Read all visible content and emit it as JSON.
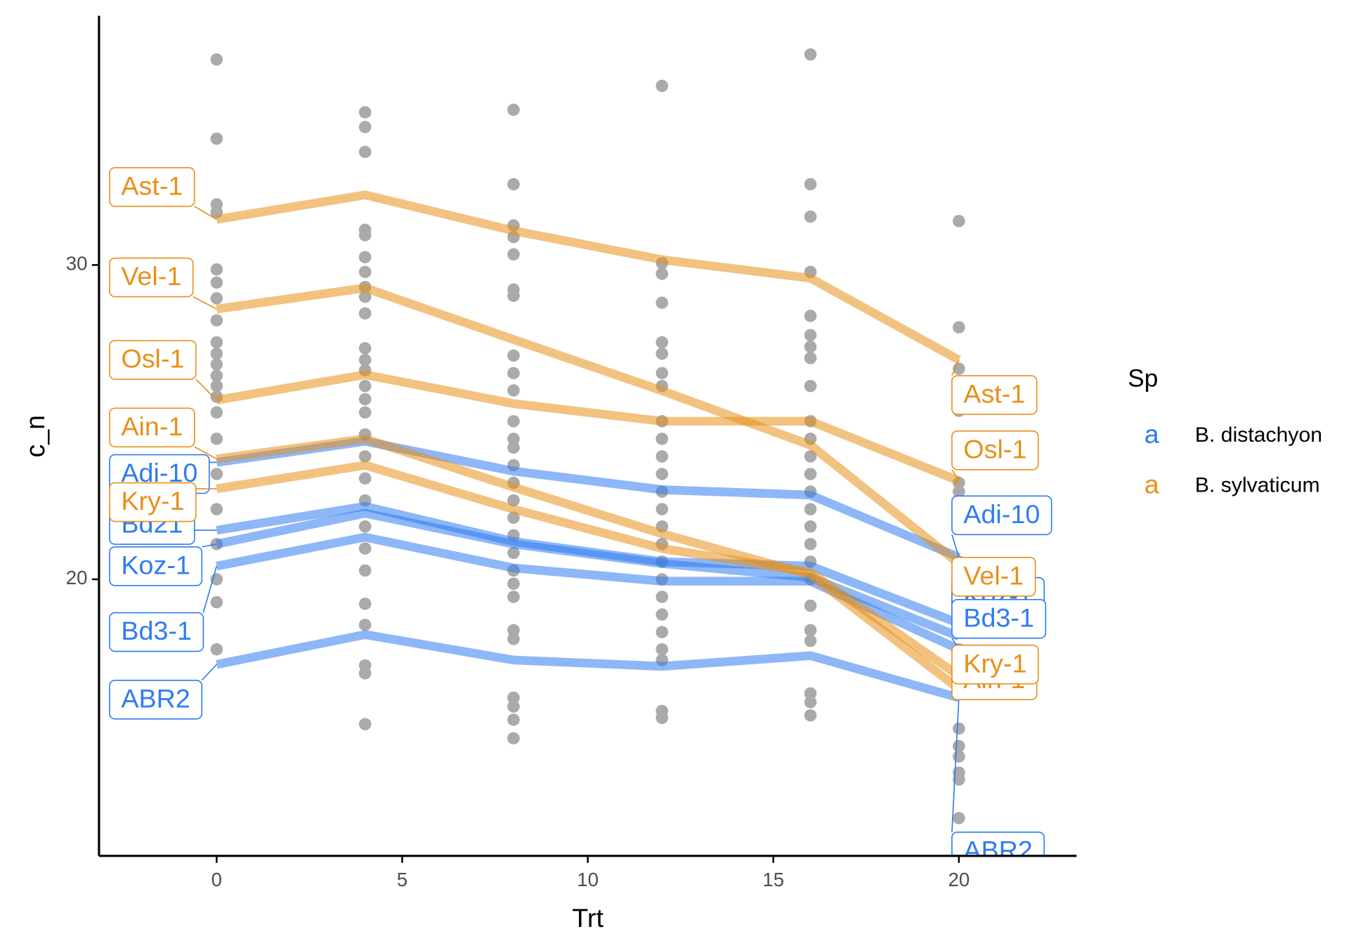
{
  "chart_data": {
    "type": "line",
    "x_label": "Trt",
    "y_label": "c_n",
    "xlim": [
      -3.17,
      23.17
    ],
    "ylim": [
      11.2,
      37.93
    ],
    "xticks": [
      0,
      5,
      10,
      15,
      20
    ],
    "yticks": [
      20,
      30
    ],
    "x": [
      0,
      4,
      8,
      12,
      16,
      20
    ],
    "legend_title": "Sp",
    "legend_symbol": "a",
    "points": {
      "color": "#aaaaaa",
      "x": [
        0,
        0,
        0,
        0,
        0,
        0,
        0,
        0,
        0,
        0,
        0,
        0,
        0,
        0,
        0,
        0,
        0,
        0,
        0,
        0,
        0,
        0,
        4,
        4,
        4,
        4,
        4,
        4,
        4,
        4,
        4,
        4,
        4,
        4,
        4,
        4,
        4,
        4,
        4,
        4,
        4,
        4,
        4,
        4,
        4,
        4,
        4,
        4,
        4,
        4,
        8,
        8,
        8,
        8,
        8,
        8,
        8,
        8,
        8,
        8,
        8,
        8,
        8,
        8,
        8,
        8,
        8,
        8,
        8,
        8,
        8,
        8,
        8,
        8,
        8,
        8,
        8,
        8,
        12,
        12,
        12,
        12,
        12,
        12,
        12,
        12,
        12,
        12,
        12,
        12,
        12,
        12,
        12,
        12,
        12,
        12,
        12,
        12,
        12,
        12,
        12,
        12,
        12,
        16,
        16,
        16,
        16,
        16,
        16,
        16,
        16,
        16,
        16,
        16,
        16,
        16,
        16,
        16,
        16,
        16,
        16,
        16,
        16,
        16,
        16,
        16,
        16,
        16,
        20,
        20,
        20,
        20,
        20,
        20,
        20,
        20,
        20,
        20,
        20,
        20,
        20,
        20,
        20,
        20,
        20,
        20,
        20,
        20,
        20
      ],
      "y": [
        36.54,
        34.02,
        31.93,
        31.68,
        29.86,
        29.44,
        28.94,
        28.24,
        27.54,
        27.18,
        26.84,
        26.48,
        26.15,
        25.81,
        25.31,
        24.47,
        23.35,
        22.23,
        21.12,
        20.0,
        19.27,
        17.77,
        34.86,
        34.39,
        33.6,
        31.12,
        30.95,
        30.25,
        29.78,
        29.3,
        28.99,
        28.46,
        27.35,
        26.98,
        26.65,
        26.15,
        25.73,
        25.31,
        24.61,
        23.91,
        23.21,
        22.51,
        21.68,
        20.98,
        20.28,
        19.22,
        18.55,
        17.26,
        17.01,
        15.39,
        34.94,
        32.57,
        31.26,
        30.89,
        30.34,
        29.22,
        29.02,
        27.12,
        26.56,
        26.01,
        25.03,
        24.47,
        24.19,
        23.63,
        23.07,
        22.51,
        21.96,
        21.4,
        20.84,
        20.28,
        19.86,
        19.44,
        18.38,
        18.1,
        16.23,
        15.95,
        15.53,
        14.94,
        35.7,
        30.06,
        29.72,
        28.8,
        27.54,
        27.18,
        26.56,
        26.15,
        25.03,
        24.47,
        23.91,
        23.35,
        22.79,
        22.23,
        21.68,
        21.12,
        20.56,
        20.0,
        19.44,
        18.88,
        18.32,
        17.77,
        17.43,
        15.81,
        15.59,
        36.7,
        32.57,
        31.54,
        29.78,
        28.38,
        27.77,
        27.4,
        27.04,
        26.15,
        25.03,
        24.47,
        23.91,
        23.35,
        22.79,
        22.23,
        21.68,
        21.12,
        20.56,
        20.0,
        19.16,
        18.38,
        18.04,
        16.37,
        16.09,
        15.67,
        31.4,
        28.02,
        26.7,
        25.73,
        25.36,
        24.53,
        23.07,
        22.79,
        21.68,
        20.56,
        18.88,
        18.32,
        17.77,
        17.21,
        16.65,
        15.25,
        14.69,
        14.36,
        13.85,
        13.63,
        12.4
      ]
    },
    "groups": [
      {
        "name": "B. distachyon",
        "color": "#2f7cf0",
        "series": [
          {
            "name": "Adi-10",
            "values": [
              23.72,
              24.39,
              23.44,
              22.85,
              22.68,
              20.7
            ]
          },
          {
            "name": "Bd21",
            "values": [
              21.56,
              22.32,
              21.2,
              20.56,
              20.42,
              18.6
            ]
          },
          {
            "name": "Koz-1",
            "values": [
              21.12,
              22.1,
              21.12,
              20.5,
              20.06,
              18.18
            ]
          },
          {
            "name": "Bd3-1",
            "values": [
              20.42,
              21.34,
              20.36,
              19.94,
              19.94,
              17.77
            ]
          },
          {
            "name": "ABR2",
            "values": [
              17.29,
              18.24,
              17.43,
              17.23,
              17.57,
              16.23
            ]
          }
        ]
      },
      {
        "name": "B. sylvaticum",
        "color": "#e8901a",
        "series": [
          {
            "name": "Ast-1",
            "values": [
              31.45,
              32.23,
              31.09,
              30.17,
              29.58,
              26.98
            ]
          },
          {
            "name": "Vel-1",
            "values": [
              28.6,
              29.27,
              27.63,
              26.0,
              24.27,
              20.5
            ]
          },
          {
            "name": "Osl-1",
            "values": [
              25.7,
              26.51,
              25.59,
              25.03,
              25.03,
              23.13
            ]
          },
          {
            "name": "Ain-1",
            "values": [
              23.83,
              24.47,
              22.93,
              21.45,
              20.14,
              16.51
            ]
          },
          {
            "name": "Kry-1",
            "values": [
              22.88,
              23.63,
              22.23,
              20.98,
              20.22,
              16.93
            ]
          }
        ]
      }
    ]
  }
}
